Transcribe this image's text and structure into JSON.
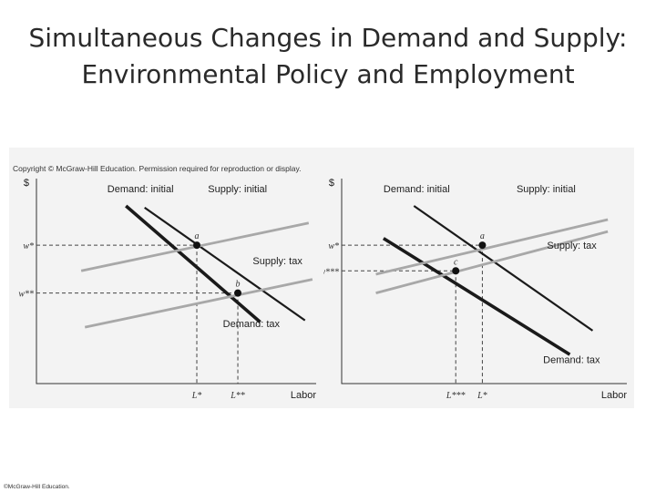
{
  "title": {
    "line1": "Simultaneous Changes in Demand and Supply:",
    "line2": "Environmental Policy and Employment"
  },
  "figure_copyright": "Copyright © McGraw-Hill Education. Permission required for reproduction or display.",
  "footer": "©McGraw-Hill Education.",
  "colors": {
    "demand": "#1a1a1a",
    "supply": "#a8a8a8",
    "background": "#f3f3f3"
  },
  "chart_data": [
    {
      "type": "line",
      "y_axis_label": "$",
      "x_axis_label": "Labor",
      "y_ticks": [
        {
          "label": "w*",
          "y": 8.1
        },
        {
          "label": "w**",
          "y": 5.3
        }
      ],
      "x_ticks": [
        {
          "label": "L*",
          "x": 4.3
        },
        {
          "label": "L**",
          "x": 5.4
        }
      ],
      "series": [
        {
          "name": "Demand: initial",
          "kind": "demand",
          "emphasis": false,
          "points": [
            [
              2.9,
              10.3
            ],
            [
              7.2,
              3.7
            ]
          ]
        },
        {
          "name": "Demand: tax",
          "kind": "demand",
          "emphasis": true,
          "points": [
            [
              2.4,
              10.4
            ],
            [
              6.0,
              3.6
            ]
          ]
        },
        {
          "name": "Supply: initial",
          "kind": "supply",
          "points": [
            [
              1.2,
              6.6
            ],
            [
              7.3,
              9.4
            ]
          ]
        },
        {
          "name": "Supply: tax",
          "kind": "supply",
          "points": [
            [
              1.3,
              3.3
            ],
            [
              7.4,
              6.1
            ]
          ]
        }
      ],
      "labels": [
        {
          "text": "Demand: initial",
          "x": 1.9,
          "y": 11.2,
          "anchor": "start"
        },
        {
          "text": "Supply: initial",
          "x": 4.6,
          "y": 11.2,
          "anchor": "start"
        },
        {
          "text": "Supply: tax",
          "x": 5.8,
          "y": 7.0,
          "anchor": "start"
        },
        {
          "text": "Demand: tax",
          "x": 5.0,
          "y": 3.3,
          "anchor": "start"
        }
      ],
      "points": [
        {
          "label": "a",
          "x": 4.3,
          "y": 8.1
        },
        {
          "label": "b",
          "x": 5.4,
          "y": 5.3
        }
      ],
      "xlim": [
        0,
        7.5
      ],
      "ylim": [
        0,
        12
      ]
    },
    {
      "type": "line",
      "y_axis_label": "$",
      "x_axis_label": "Labor",
      "y_ticks": [
        {
          "label": "w*",
          "y": 8.1
        },
        {
          "label": "w***",
          "y": 6.6
        }
      ],
      "x_ticks": [
        {
          "label": "L***",
          "x": 3.0
        },
        {
          "label": "L*",
          "x": 3.7
        }
      ],
      "series": [
        {
          "name": "Demand: initial",
          "kind": "demand",
          "emphasis": false,
          "points": [
            [
              1.9,
              10.4
            ],
            [
              6.6,
              3.1
            ]
          ]
        },
        {
          "name": "Demand: tax",
          "kind": "demand",
          "emphasis": true,
          "points": [
            [
              1.1,
              8.5
            ],
            [
              6.0,
              1.7
            ]
          ]
        },
        {
          "name": "Supply: initial",
          "kind": "supply",
          "points": [
            [
              0.9,
              6.4
            ],
            [
              7.0,
              9.6
            ]
          ]
        },
        {
          "name": "Supply: tax",
          "kind": "supply",
          "points": [
            [
              0.9,
              5.3
            ],
            [
              7.0,
              8.9
            ]
          ]
        }
      ],
      "labels": [
        {
          "text": "Demand: initial",
          "x": 1.1,
          "y": 11.2,
          "anchor": "start"
        },
        {
          "text": "Supply: initial",
          "x": 4.6,
          "y": 11.2,
          "anchor": "start"
        },
        {
          "text": "Supply: tax",
          "x": 5.4,
          "y": 7.9,
          "anchor": "start"
        },
        {
          "text": "Demand: tax",
          "x": 5.3,
          "y": 1.2,
          "anchor": "start"
        }
      ],
      "points": [
        {
          "label": "a",
          "x": 3.7,
          "y": 8.1
        },
        {
          "label": "c",
          "x": 3.0,
          "y": 6.6
        }
      ],
      "xlim": [
        0,
        7.5
      ],
      "ylim": [
        0,
        12
      ]
    }
  ]
}
